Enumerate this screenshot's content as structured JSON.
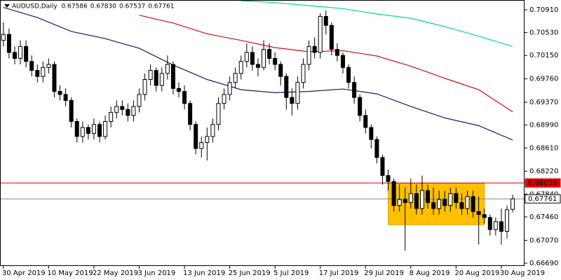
{
  "chart_data": {
    "type": "candlestick",
    "title": "AUDUSD,Daily",
    "header_values": [
      "0.67586",
      "0.67830",
      "0.67537",
      "0.67761"
    ],
    "categories": [
      "30 Apr 2019",
      null,
      null,
      null,
      null,
      null,
      null,
      null,
      "10 May 2019",
      null,
      null,
      null,
      null,
      null,
      null,
      null,
      "22 May 2019",
      null,
      null,
      null,
      null,
      null,
      null,
      null,
      "3 Jun 2019",
      null,
      null,
      null,
      null,
      null,
      null,
      null,
      "13 Jun 2019",
      null,
      null,
      null,
      null,
      null,
      null,
      null,
      "25 Jun 2019",
      null,
      null,
      null,
      null,
      null,
      null,
      null,
      "5 Jul 2019",
      null,
      null,
      null,
      null,
      null,
      null,
      null,
      "17 Jul 2019",
      null,
      null,
      null,
      null,
      null,
      null,
      null,
      "29 Jul 2019",
      null,
      null,
      null,
      null,
      null,
      null,
      null,
      "8 Aug 2019",
      null,
      null,
      null,
      null,
      null,
      null,
      null,
      "20 Aug 2019",
      null,
      null,
      null,
      null,
      null,
      null,
      null,
      "30 Aug 2019",
      null,
      null
    ],
    "open": [
      0.704,
      0.705,
      0.702,
      0.701,
      0.703,
      0.7005,
      0.699,
      0.698,
      0.6995,
      0.7,
      0.6955,
      0.695,
      0.694,
      0.6905,
      0.688,
      0.6895,
      0.6885,
      0.69,
      0.688,
      0.6905,
      0.692,
      0.693,
      0.6925,
      0.6915,
      0.693,
      0.695,
      0.6975,
      0.699,
      0.6965,
      0.6985,
      0.7,
      0.696,
      0.6955,
      0.6935,
      0.69,
      0.686,
      0.687,
      0.688,
      0.69,
      0.6935,
      0.695,
      0.697,
      0.6985,
      0.7005,
      0.702,
      0.7,
      0.6995,
      0.7025,
      0.701,
      0.7,
      0.698,
      0.6945,
      0.6935,
      0.697,
      0.7,
      0.703,
      0.702,
      0.708,
      0.7065,
      0.7025,
      0.7015,
      0.6995,
      0.697,
      0.6945,
      0.6915,
      0.6895,
      0.6875,
      0.6845,
      0.6815,
      0.6805,
      0.6765,
      0.6775,
      0.677,
      0.6785,
      0.676,
      0.679,
      0.677,
      0.676,
      0.6775,
      0.6765,
      0.6785,
      0.677,
      0.676,
      0.678,
      0.6755,
      0.675,
      0.6745,
      0.6725,
      0.6738,
      0.6722,
      0.67586
    ],
    "high": [
      0.707,
      0.706,
      0.703,
      0.704,
      0.704,
      0.7015,
      0.7,
      0.7005,
      0.701,
      0.7005,
      0.6965,
      0.696,
      0.6945,
      0.691,
      0.6905,
      0.69,
      0.691,
      0.6905,
      0.6915,
      0.693,
      0.694,
      0.694,
      0.6935,
      0.694,
      0.696,
      0.6985,
      0.7,
      0.6995,
      0.6995,
      0.7015,
      0.7005,
      0.697,
      0.6965,
      0.694,
      0.6905,
      0.688,
      0.6895,
      0.691,
      0.6945,
      0.696,
      0.698,
      0.6995,
      0.7015,
      0.7035,
      0.703,
      0.701,
      0.704,
      0.7035,
      0.702,
      0.7005,
      0.6985,
      0.696,
      0.698,
      0.701,
      0.704,
      0.7045,
      0.7085,
      0.709,
      0.707,
      0.7035,
      0.702,
      0.7,
      0.698,
      0.695,
      0.6925,
      0.69,
      0.688,
      0.685,
      0.6825,
      0.681,
      0.68,
      0.6795,
      0.681,
      0.68,
      0.6815,
      0.68,
      0.6795,
      0.679,
      0.679,
      0.6795,
      0.6795,
      0.6785,
      0.679,
      0.679,
      0.678,
      0.676,
      0.675,
      0.6745,
      0.676,
      0.6765,
      0.6783
    ],
    "low": [
      0.703,
      0.701,
      0.7,
      0.7,
      0.6995,
      0.698,
      0.697,
      0.697,
      0.6985,
      0.6945,
      0.694,
      0.693,
      0.6895,
      0.687,
      0.687,
      0.6875,
      0.6875,
      0.687,
      0.6875,
      0.6895,
      0.691,
      0.6915,
      0.6905,
      0.6905,
      0.692,
      0.694,
      0.6965,
      0.6955,
      0.6955,
      0.6975,
      0.695,
      0.6945,
      0.6925,
      0.689,
      0.685,
      0.6845,
      0.684,
      0.687,
      0.689,
      0.6925,
      0.694,
      0.696,
      0.6975,
      0.6995,
      0.699,
      0.698,
      0.699,
      0.7,
      0.699,
      0.6965,
      0.6925,
      0.6915,
      0.6925,
      0.696,
      0.699,
      0.701,
      0.701,
      0.705,
      0.7015,
      0.7005,
      0.6985,
      0.696,
      0.6935,
      0.6905,
      0.6885,
      0.686,
      0.6835,
      0.68,
      0.679,
      0.6755,
      0.6755,
      0.669,
      0.676,
      0.675,
      0.675,
      0.676,
      0.675,
      0.675,
      0.6755,
      0.6755,
      0.676,
      0.675,
      0.675,
      0.6745,
      0.67,
      0.6735,
      0.6715,
      0.6715,
      0.67,
      0.671,
      0.67537
    ],
    "close": [
      0.705,
      0.702,
      0.701,
      0.703,
      0.7005,
      0.699,
      0.698,
      0.6995,
      0.7,
      0.6955,
      0.695,
      0.694,
      0.6905,
      0.688,
      0.6895,
      0.6885,
      0.69,
      0.688,
      0.6905,
      0.692,
      0.693,
      0.6925,
      0.6915,
      0.693,
      0.695,
      0.6975,
      0.699,
      0.6965,
      0.6985,
      0.7,
      0.696,
      0.6955,
      0.6935,
      0.69,
      0.686,
      0.687,
      0.688,
      0.69,
      0.6935,
      0.695,
      0.697,
      0.6985,
      0.7005,
      0.702,
      0.7,
      0.6995,
      0.7025,
      0.701,
      0.7,
      0.698,
      0.6945,
      0.6935,
      0.697,
      0.7,
      0.703,
      0.702,
      0.708,
      0.7065,
      0.7025,
      0.7015,
      0.6995,
      0.697,
      0.6945,
      0.6915,
      0.6895,
      0.6875,
      0.6845,
      0.6815,
      0.6805,
      0.6765,
      0.6775,
      0.677,
      0.6785,
      0.676,
      0.679,
      0.677,
      0.676,
      0.6775,
      0.6765,
      0.6785,
      0.677,
      0.676,
      0.678,
      0.6755,
      0.675,
      0.6745,
      0.6725,
      0.6738,
      0.6722,
      0.6758,
      0.67761
    ],
    "up_color": "#ffffff",
    "down_color": "#000000",
    "xlim": [
      -0.6,
      92.1
    ],
    "ylim": [
      0.66643,
      0.71073
    ],
    "yticks": [
      {
        "value": 0.7091,
        "label": "0.70910"
      },
      {
        "value": 0.7053,
        "label": "0.70530"
      },
      {
        "value": 0.7015,
        "label": "0.70150"
      },
      {
        "value": 0.6976,
        "label": "0.69760"
      },
      {
        "value": 0.6937,
        "label": "0.69370"
      },
      {
        "value": 0.6899,
        "label": "0.68990"
      },
      {
        "value": 0.6861,
        "label": "0.68610"
      },
      {
        "value": 0.6822,
        "label": "0.68220"
      },
      {
        "value": 0.6784,
        "label": "0.67840"
      },
      {
        "value": 0.6746,
        "label": "0.67460"
      },
      {
        "value": 0.6707,
        "label": "0.67070"
      },
      {
        "value": 0.6669,
        "label": "0.66690"
      }
    ],
    "moving_averages": [
      {
        "color": "#191970",
        "x": [
          0,
          6,
          12,
          18,
          24,
          30,
          36,
          42,
          48,
          54,
          60,
          66,
          72,
          78,
          84,
          90
        ],
        "values": [
          0.7095,
          0.7078,
          0.7055,
          0.7043,
          0.7027,
          0.6999,
          0.6975,
          0.6958,
          0.6953,
          0.6955,
          0.6959,
          0.6951,
          0.693,
          0.6911,
          0.6898,
          0.6874
        ]
      },
      {
        "color": "#cc1111",
        "x": [
          0,
          6,
          12,
          18,
          24,
          30,
          36,
          42,
          48,
          54,
          60,
          66,
          72,
          78,
          84,
          90
        ],
        "values": [
          null,
          null,
          null,
          null,
          0.7082,
          0.7069,
          0.7051,
          0.704,
          0.7028,
          0.7021,
          0.7023,
          0.7014,
          0.6997,
          0.6977,
          0.6958,
          0.6921
        ]
      },
      {
        "color": "#00dd88",
        "x": [
          0,
          6,
          12,
          18,
          24,
          30,
          36,
          42,
          48,
          54,
          60,
          66,
          72,
          78,
          84,
          90
        ],
        "values": [
          null,
          null,
          null,
          null,
          null,
          null,
          null,
          0.7106,
          0.7103,
          0.7098,
          0.7093,
          0.7084,
          0.7077,
          0.7063,
          0.7047,
          0.703
        ]
      }
    ],
    "hlines": [
      {
        "value": 0.68026,
        "label": "0.68026",
        "color": "#e00000"
      },
      {
        "value": 0.67761,
        "label": "0.67761",
        "color": "#888888"
      }
    ],
    "rectangle": {
      "x": [
        68,
        85
      ],
      "y": [
        0.6802,
        0.6733
      ],
      "color": "#ffc000"
    }
  }
}
